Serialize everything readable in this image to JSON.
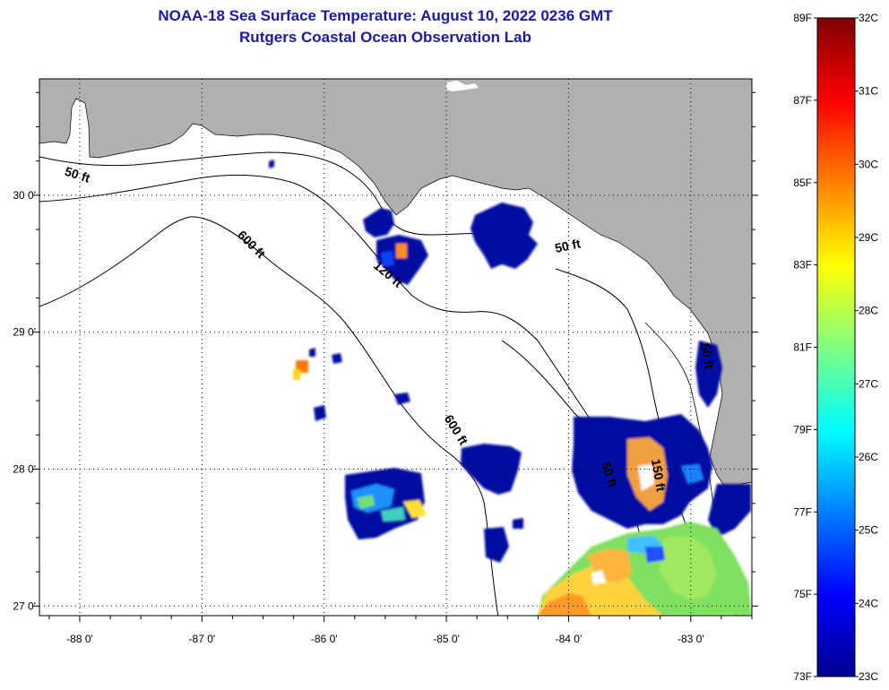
{
  "title": {
    "line1": "NOAA-18 Sea Surface Temperature:  August 10, 2022 0236 GMT",
    "line2": "Rutgers Coastal Ocean Observation Lab"
  },
  "map": {
    "lon_range": [
      -88.33,
      -82.5
    ],
    "lat_range": [
      26.93,
      30.85
    ],
    "lon_ticks": [
      {
        "value": -88,
        "label": "-88 0'"
      },
      {
        "value": -87,
        "label": "-87 0'"
      },
      {
        "value": -86,
        "label": "-86 0'"
      },
      {
        "value": -85,
        "label": "-85 0'"
      },
      {
        "value": -84,
        "label": "-84 0'"
      },
      {
        "value": -83,
        "label": "-83 0'"
      }
    ],
    "lat_ticks": [
      {
        "value": 30,
        "label": "30 0'"
      },
      {
        "value": 29,
        "label": "29 0'"
      },
      {
        "value": 28,
        "label": "28 0'"
      },
      {
        "value": 27,
        "label": "27 0'"
      }
    ],
    "contour_labels": [
      {
        "text": "50 ft",
        "lon": -88.03,
        "lat": 30.12,
        "angle": 18
      },
      {
        "text": "600 ft",
        "lon": -86.62,
        "lat": 29.62,
        "angle": 45
      },
      {
        "text": "120 ft",
        "lon": -85.5,
        "lat": 29.4,
        "angle": 40
      },
      {
        "text": "50 ft",
        "lon": -84.0,
        "lat": 29.6,
        "angle": -12
      },
      {
        "text": "600 ft",
        "lon": -84.95,
        "lat": 28.27,
        "angle": 58
      },
      {
        "text": "50 ft",
        "lon": -83.7,
        "lat": 27.95,
        "angle": 72
      },
      {
        "text": "150 ft",
        "lon": -83.3,
        "lat": 27.95,
        "angle": 80
      },
      {
        "text": "50 ft",
        "lon": -82.9,
        "lat": 28.82,
        "angle": 80
      }
    ],
    "colors": {
      "land": "#b0b0b0",
      "ocean": "#ffffff"
    }
  },
  "colorbar": {
    "f_labels": [
      "89F",
      "87F",
      "85F",
      "83F",
      "81F",
      "79F",
      "77F",
      "75F",
      "73F"
    ],
    "c_labels": [
      "32C",
      "31C",
      "30C",
      "29C",
      "28C",
      "27C",
      "26C",
      "25C",
      "24C",
      "23C"
    ],
    "f_range": [
      73,
      89
    ],
    "c_range": [
      23,
      32
    ],
    "stops": [
      "#00008f",
      "#0000ff",
      "#0080ff",
      "#00ffff",
      "#80ff80",
      "#ffff00",
      "#ff8000",
      "#ff0000",
      "#800000"
    ]
  }
}
